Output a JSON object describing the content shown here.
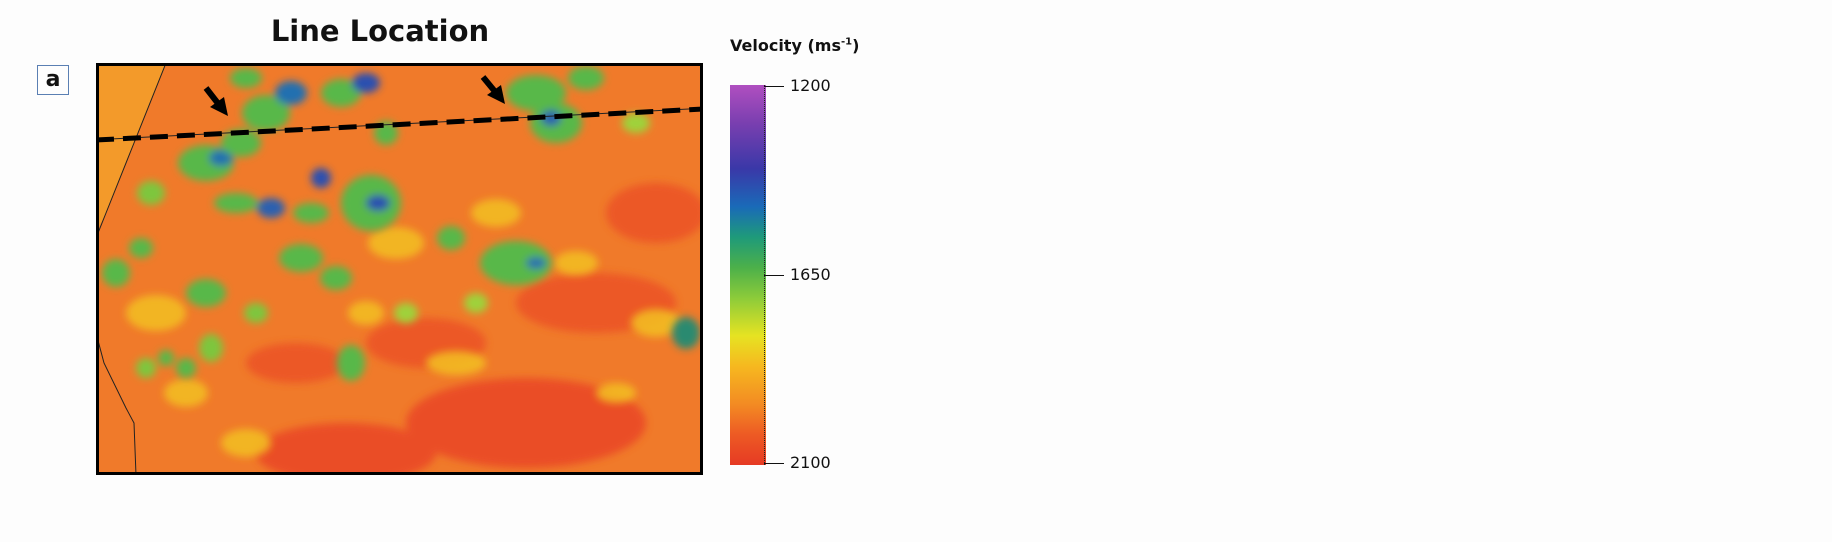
{
  "figure": {
    "title": "Line Location",
    "panel_label": "a"
  },
  "colorbar": {
    "title_main": "Velocity (ms",
    "title_sup": "-1",
    "title_end": ")",
    "ticks": [
      {
        "label": "1200",
        "value": 1200
      },
      {
        "label": "1650",
        "value": 1650
      },
      {
        "label": "2100",
        "value": 2100
      }
    ],
    "range": [
      1200,
      2100
    ]
  },
  "colors": {
    "low_velocity": "#7a3fb0",
    "mid_velocity": "#4cb04a",
    "high_velocity": "#e63a24",
    "line": "#000000"
  },
  "icons": [
    "arrow-icon"
  ]
}
